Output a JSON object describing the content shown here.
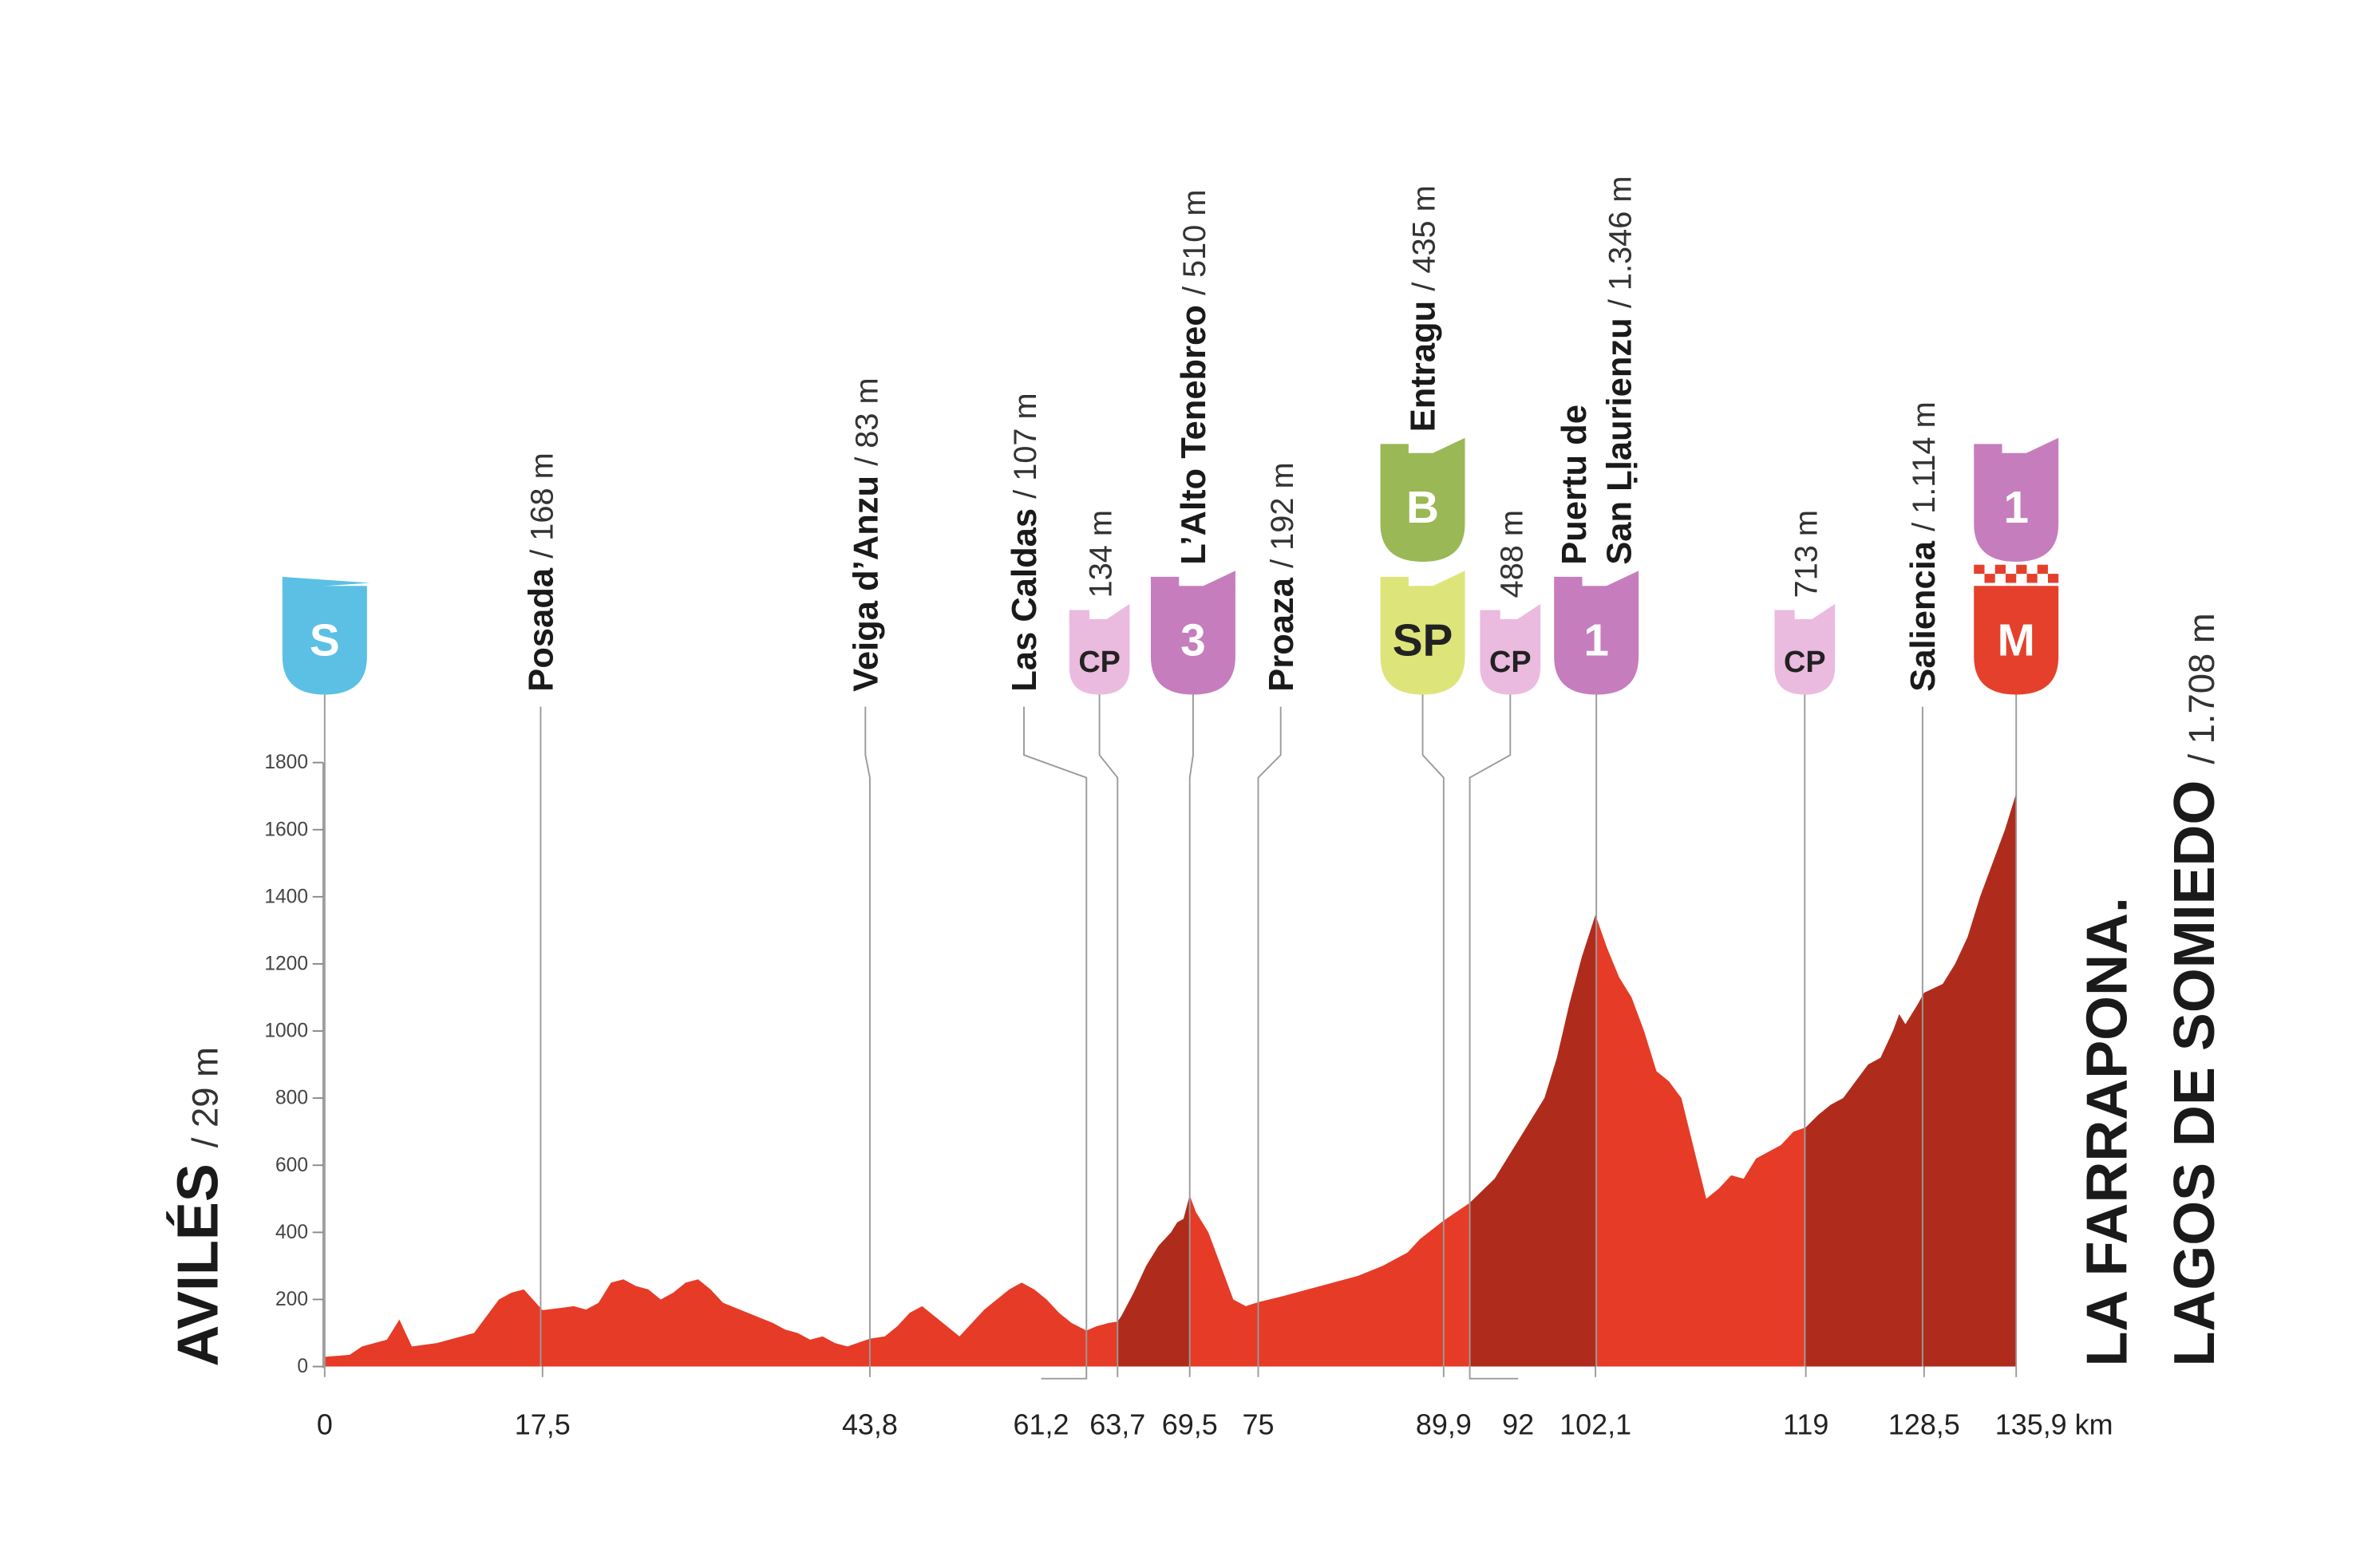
{
  "chart_data": {
    "type": "elevation_profile",
    "x": [
      0,
      2,
      3,
      4,
      5,
      6,
      7,
      9,
      11,
      12,
      13,
      14,
      15,
      16,
      17.5,
      19,
      20,
      21,
      22,
      23,
      24,
      25,
      26,
      27,
      28,
      29,
      30,
      31,
      32,
      34,
      36,
      37,
      38,
      39,
      40,
      41,
      42,
      43.8,
      45,
      46,
      47,
      48,
      49,
      50,
      51,
      52,
      53,
      54,
      55,
      56,
      57,
      58,
      59,
      60,
      61.2,
      62,
      63,
      63.7,
      64,
      65,
      66,
      67,
      68,
      68.5,
      69,
      69.5,
      70,
      71,
      72,
      73,
      74,
      75,
      77,
      80,
      83,
      85,
      87,
      88,
      89.9,
      92,
      94,
      96,
      98,
      99,
      100,
      101,
      102.1,
      103,
      104,
      105,
      106,
      107,
      108,
      109,
      110,
      111,
      112,
      113,
      114,
      115,
      116,
      117,
      118,
      119,
      120,
      121,
      122,
      123,
      124,
      125,
      126,
      126.5,
      127,
      128,
      128.5,
      130,
      131,
      132,
      133,
      134,
      135,
      135.9
    ],
    "values": [
      29,
      35,
      60,
      70,
      80,
      140,
      60,
      70,
      90,
      100,
      150,
      200,
      220,
      230,
      168,
      175,
      180,
      170,
      190,
      250,
      260,
      240,
      230,
      200,
      220,
      250,
      260,
      230,
      190,
      160,
      130,
      110,
      100,
      80,
      90,
      70,
      60,
      83,
      90,
      120,
      160,
      180,
      150,
      120,
      90,
      130,
      170,
      200,
      230,
      250,
      230,
      200,
      160,
      130,
      107,
      120,
      130,
      134,
      150,
      220,
      300,
      360,
      400,
      430,
      440,
      510,
      460,
      400,
      300,
      200,
      180,
      192,
      210,
      240,
      270,
      300,
      340,
      380,
      435,
      488,
      560,
      680,
      800,
      920,
      1080,
      1220,
      1346,
      1250,
      1160,
      1100,
      1000,
      880,
      850,
      800,
      650,
      500,
      530,
      570,
      560,
      620,
      640,
      660,
      700,
      713,
      750,
      780,
      800,
      850,
      900,
      920,
      1000,
      1050,
      1020,
      1080,
      1114,
      1140,
      1200,
      1280,
      1400,
      1500,
      1600,
      1708
    ],
    "color": "#e63b26",
    "climb_color": "#a52a1b",
    "climb_segments": [
      [
        63.7,
        69.5
      ],
      [
        92,
        102.1
      ],
      [
        119,
        135.9
      ]
    ],
    "xlim": [
      0,
      135.9
    ],
    "ylim": [
      0,
      1800
    ],
    "yticks": [
      0,
      200,
      400,
      600,
      800,
      1000,
      1200,
      1400,
      1600,
      1800
    ],
    "xticks": [
      0,
      {
        "value": 17.5,
        "label": "17,5"
      },
      {
        "value": 43.8,
        "label": "43,8"
      },
      {
        "value": 61.2,
        "label": "61,2"
      },
      {
        "value": 63.7,
        "label": "63,7"
      },
      {
        "value": 69.5,
        "label": "69,5"
      },
      75,
      {
        "value": 89.9,
        "label": "89,9"
      },
      92,
      {
        "value": 102.1,
        "label": "102,1"
      },
      119,
      {
        "value": 128.5,
        "label": "128,5"
      },
      {
        "value": 135.9,
        "label": "135,9 km"
      }
    ],
    "start": {
      "name": "AVILÉS",
      "altitude": "/ 29 m"
    },
    "finish": {
      "name": [
        "LA FARRAPONA.",
        "LAGOS DE SOMIEDO"
      ],
      "altitude": "/ 1.708 m"
    },
    "waypoints": [
      {
        "km": 0,
        "badges": [
          {
            "text": "S",
            "color": "#5bc0e4"
          }
        ]
      },
      {
        "km": 17.5,
        "name": [
          "Posada"
        ],
        "altitude": "/ 168 m"
      },
      {
        "km": 43.8,
        "name": [
          "Veiga d’Anzu"
        ],
        "altitude": "/ 83 m"
      },
      {
        "km": 61.2,
        "name": [
          "Las Caldas"
        ],
        "altitude": "/ 107 m"
      },
      {
        "km": 63.7,
        "altitude": "134 m",
        "badges": [
          {
            "text": "CP",
            "color": "#ebbadf"
          }
        ]
      },
      {
        "km": 69.5,
        "name": [
          "L’Alto Tenebreo"
        ],
        "altitude": "/ 510 m",
        "badges": [
          {
            "text": "3",
            "color": "#c67dbd"
          }
        ]
      },
      {
        "km": 75,
        "name": [
          "Proaza"
        ],
        "altitude": "/ 192 m"
      },
      {
        "km": 89.9,
        "name": [
          "Entragu"
        ],
        "altitude": "/ 435 m",
        "badges": [
          {
            "text": "SP",
            "color": "#dde57a"
          },
          {
            "text": "B",
            "color": "#9ab855"
          }
        ]
      },
      {
        "km": 92,
        "altitude": "488 m",
        "badges": [
          {
            "text": "CP",
            "color": "#ebbadf"
          }
        ]
      },
      {
        "km": 102.1,
        "name": [
          "Puertu de",
          "San Ḷḷaurienzu"
        ],
        "altitude": "/ 1.346 m",
        "badges": [
          {
            "text": "1",
            "color": "#c67dbd"
          }
        ]
      },
      {
        "km": 119,
        "altitude": "713 m",
        "badges": [
          {
            "text": "CP",
            "color": "#ebbadf"
          }
        ]
      },
      {
        "km": 128.5,
        "name": [
          "Saliencia"
        ],
        "altitude": "/ 1.114 m"
      },
      {
        "km": 135.9,
        "badges": [
          {
            "text": "M",
            "color": "#e5402b"
          },
          {
            "text": "1",
            "color": "#c67dbd"
          }
        ]
      }
    ]
  }
}
